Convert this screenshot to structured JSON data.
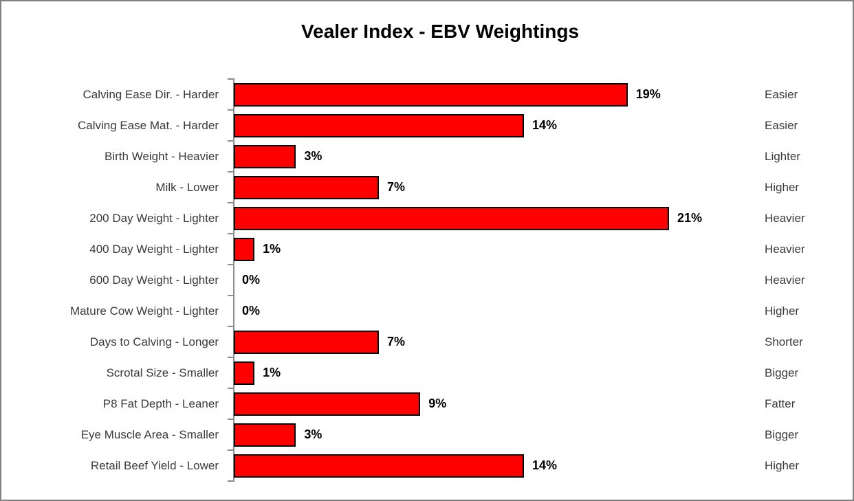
{
  "colors": {
    "bar_fill": "#fe0000",
    "bar_border": "#000000",
    "axis": "#8c8c8c",
    "category_text": "#3a3a3a",
    "value_text": "#000000",
    "frame_border": "#808080",
    "background": "#ffffff"
  },
  "chart_data": {
    "type": "bar",
    "orientation": "horizontal",
    "title": "Vealer Index - EBV Weightings",
    "xlabel": "",
    "ylabel": "",
    "xlim": [
      0,
      21
    ],
    "grid": false,
    "legend": "none",
    "value_format": "percent",
    "rows": [
      {
        "category": "Calving Ease Dir. - Harder",
        "value": 19,
        "value_label": "19%",
        "direction": "Easier"
      },
      {
        "category": "Calving Ease Mat. - Harder",
        "value": 14,
        "value_label": "14%",
        "direction": "Easier"
      },
      {
        "category": "Birth Weight - Heavier",
        "value": 3,
        "value_label": "3%",
        "direction": "Lighter"
      },
      {
        "category": "Milk - Lower",
        "value": 7,
        "value_label": "7%",
        "direction": "Higher"
      },
      {
        "category": "200 Day Weight - Lighter",
        "value": 21,
        "value_label": "21%",
        "direction": "Heavier"
      },
      {
        "category": "400 Day Weight - Lighter",
        "value": 1,
        "value_label": "1%",
        "direction": "Heavier"
      },
      {
        "category": "600 Day Weight - Lighter",
        "value": 0,
        "value_label": "0%",
        "direction": "Heavier"
      },
      {
        "category": "Mature Cow Weight - Lighter",
        "value": 0,
        "value_label": "0%",
        "direction": "Higher"
      },
      {
        "category": "Days to Calving - Longer",
        "value": 7,
        "value_label": "7%",
        "direction": "Shorter"
      },
      {
        "category": "Scrotal Size - Smaller",
        "value": 1,
        "value_label": "1%",
        "direction": "Bigger"
      },
      {
        "category": "P8 Fat Depth - Leaner",
        "value": 9,
        "value_label": "9%",
        "direction": "Fatter"
      },
      {
        "category": "Eye Muscle Area - Smaller",
        "value": 3,
        "value_label": "3%",
        "direction": "Bigger"
      },
      {
        "category": "Retail Beef Yield - Lower",
        "value": 14,
        "value_label": "14%",
        "direction": "Higher"
      }
    ]
  }
}
